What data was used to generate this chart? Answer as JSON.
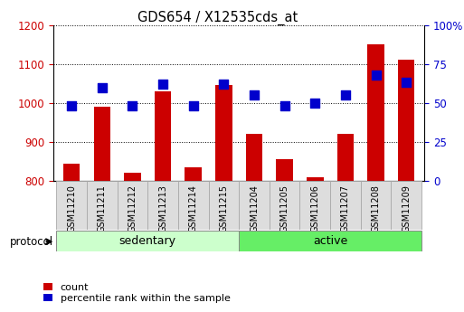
{
  "title": "GDS654 / X12535cds_at",
  "samples": [
    "GSM11210",
    "GSM11211",
    "GSM11212",
    "GSM11213",
    "GSM11214",
    "GSM11215",
    "GSM11204",
    "GSM11205",
    "GSM11206",
    "GSM11207",
    "GSM11208",
    "GSM11209"
  ],
  "counts": [
    845,
    990,
    820,
    1030,
    835,
    1045,
    920,
    855,
    810,
    920,
    1150,
    1110
  ],
  "percentiles": [
    48,
    60,
    48,
    62,
    48,
    62,
    55,
    48,
    50,
    55,
    68,
    63
  ],
  "group_colors": {
    "sedentary": "#ccffcc",
    "active": "#66ee66"
  },
  "bar_color": "#cc0000",
  "dot_color": "#0000cc",
  "ylim_left": [
    800,
    1200
  ],
  "ylim_right": [
    0,
    100
  ],
  "yticks_left": [
    800,
    900,
    1000,
    1100,
    1200
  ],
  "yticks_right": [
    0,
    25,
    50,
    75,
    100
  ],
  "ytick_right_labels": [
    "0",
    "25",
    "50",
    "75",
    "100%"
  ],
  "legend_count_label": "count",
  "legend_percentile_label": "percentile rank within the sample",
  "protocol_label": "protocol",
  "group_label_sedentary": "sedentary",
  "group_label_active": "active",
  "background_color": "#ffffff",
  "bar_width": 0.55,
  "dot_size": 55,
  "tick_color_left": "#cc0000",
  "tick_color_right": "#0000cc"
}
